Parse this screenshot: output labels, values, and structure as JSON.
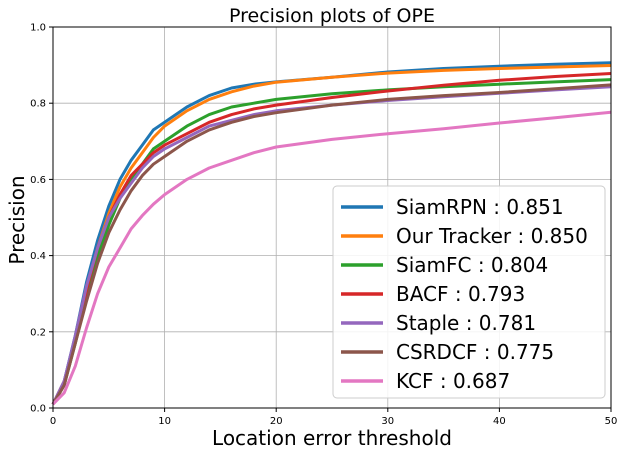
{
  "chart_data": {
    "type": "line",
    "title": "Precision plots of OPE",
    "xlabel": "Location error threshold",
    "ylabel": "Precision",
    "xlim": [
      0,
      50
    ],
    "ylim": [
      0,
      1
    ],
    "x_ticks": [
      "0",
      "10",
      "20",
      "30",
      "40",
      "50"
    ],
    "y_ticks": [
      "0.0",
      "0.2",
      "0.4",
      "0.6",
      "0.8",
      "1.0"
    ],
    "grid": true,
    "legend_position": "lower-right",
    "x": [
      0,
      1,
      2,
      3,
      4,
      5,
      6,
      7,
      8,
      9,
      10,
      12,
      14,
      16,
      18,
      20,
      25,
      30,
      35,
      40,
      45,
      50
    ],
    "series": [
      {
        "name": "SiamRPN",
        "score": "0.851",
        "legend_label": "SiamRPN : 0.851",
        "color": "#1f77b4",
        "values": [
          0.01,
          0.07,
          0.19,
          0.33,
          0.44,
          0.53,
          0.6,
          0.65,
          0.69,
          0.73,
          0.75,
          0.79,
          0.82,
          0.84,
          0.85,
          0.856,
          0.868,
          0.882,
          0.891,
          0.897,
          0.902,
          0.906
        ]
      },
      {
        "name": "Our Tracker",
        "score": "0.850",
        "legend_label": "Our Tracker : 0.850",
        "color": "#ff7f0e",
        "values": [
          0.01,
          0.06,
          0.18,
          0.31,
          0.42,
          0.51,
          0.58,
          0.63,
          0.67,
          0.71,
          0.74,
          0.78,
          0.81,
          0.83,
          0.845,
          0.855,
          0.868,
          0.879,
          0.886,
          0.891,
          0.895,
          0.899
        ]
      },
      {
        "name": "SiamFC",
        "score": "0.804",
        "legend_label": "SiamFC : 0.804",
        "color": "#2ca02c",
        "values": [
          0.01,
          0.06,
          0.17,
          0.29,
          0.4,
          0.48,
          0.55,
          0.6,
          0.64,
          0.68,
          0.7,
          0.74,
          0.77,
          0.79,
          0.8,
          0.81,
          0.825,
          0.835,
          0.843,
          0.85,
          0.856,
          0.862
        ]
      },
      {
        "name": "BACF",
        "score": "0.793",
        "legend_label": "BACF : 0.793",
        "color": "#d62728",
        "values": [
          0.01,
          0.07,
          0.18,
          0.31,
          0.42,
          0.5,
          0.56,
          0.61,
          0.64,
          0.67,
          0.69,
          0.72,
          0.75,
          0.77,
          0.785,
          0.795,
          0.815,
          0.832,
          0.847,
          0.86,
          0.87,
          0.878
        ]
      },
      {
        "name": "Staple",
        "score": "0.781",
        "legend_label": "Staple : 0.781",
        "color": "#9467bd",
        "values": [
          0.01,
          0.07,
          0.19,
          0.32,
          0.42,
          0.5,
          0.55,
          0.59,
          0.63,
          0.66,
          0.68,
          0.71,
          0.74,
          0.755,
          0.77,
          0.78,
          0.795,
          0.807,
          0.817,
          0.826,
          0.835,
          0.843
        ]
      },
      {
        "name": "CSRDCF",
        "score": "0.775",
        "legend_label": "CSRDCF : 0.775",
        "color": "#8c564b",
        "values": [
          0.01,
          0.06,
          0.17,
          0.28,
          0.38,
          0.46,
          0.52,
          0.57,
          0.61,
          0.64,
          0.66,
          0.7,
          0.73,
          0.75,
          0.765,
          0.775,
          0.795,
          0.81,
          0.82,
          0.828,
          0.838,
          0.848
        ]
      },
      {
        "name": "KCF",
        "score": "0.687",
        "legend_label": "KCF : 0.687",
        "color": "#e377c2",
        "values": [
          0.01,
          0.04,
          0.11,
          0.21,
          0.3,
          0.37,
          0.42,
          0.47,
          0.505,
          0.535,
          0.56,
          0.6,
          0.63,
          0.65,
          0.67,
          0.685,
          0.705,
          0.72,
          0.733,
          0.748,
          0.762,
          0.776
        ]
      }
    ]
  }
}
